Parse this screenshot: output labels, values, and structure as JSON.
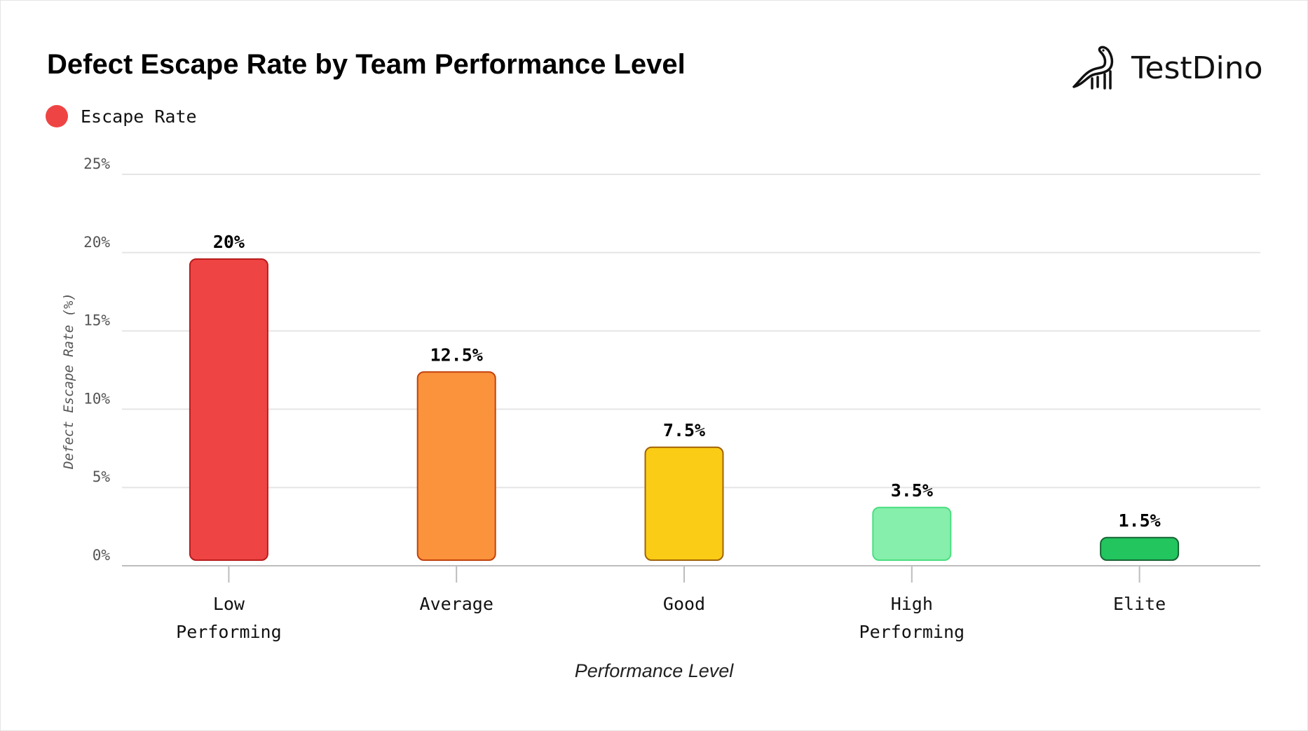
{
  "brand": {
    "name": "TestDino",
    "logo_icon": "dinosaur-icon"
  },
  "chart_data": {
    "type": "bar",
    "title": "Defect Escape Rate by Team Performance Level",
    "legend": {
      "entries": [
        "Escape Rate"
      ],
      "color": "#ef4444",
      "placement": "top-left"
    },
    "categories": [
      [
        "Low",
        "Performing"
      ],
      [
        "Average"
      ],
      [
        "Good"
      ],
      [
        "High",
        "Performing"
      ],
      [
        "Elite"
      ]
    ],
    "series": [
      {
        "name": "Escape Rate",
        "values": [
          20,
          12.5,
          7.5,
          3.5,
          1.5
        ]
      }
    ],
    "data_labels": [
      "20%",
      "12.5%",
      "7.5%",
      "3.5%",
      "1.5%"
    ],
    "colors": [
      {
        "fill": "#ef4444",
        "stroke": "#b91c1c"
      },
      {
        "fill": "#fb923c",
        "stroke": "#c2410c"
      },
      {
        "fill": "#facc15",
        "stroke": "#a16207"
      },
      {
        "fill": "#86efac",
        "stroke": "#4ade80"
      },
      {
        "fill": "#22c55e",
        "stroke": "#166534"
      }
    ],
    "xlabel": "Performance Level",
    "ylabel": "Defect Escape Rate (%)",
    "ylim": [
      0,
      25
    ],
    "yticks": [
      "0%",
      "5%",
      "10%",
      "15%",
      "20%",
      "25%"
    ],
    "grid": true
  }
}
